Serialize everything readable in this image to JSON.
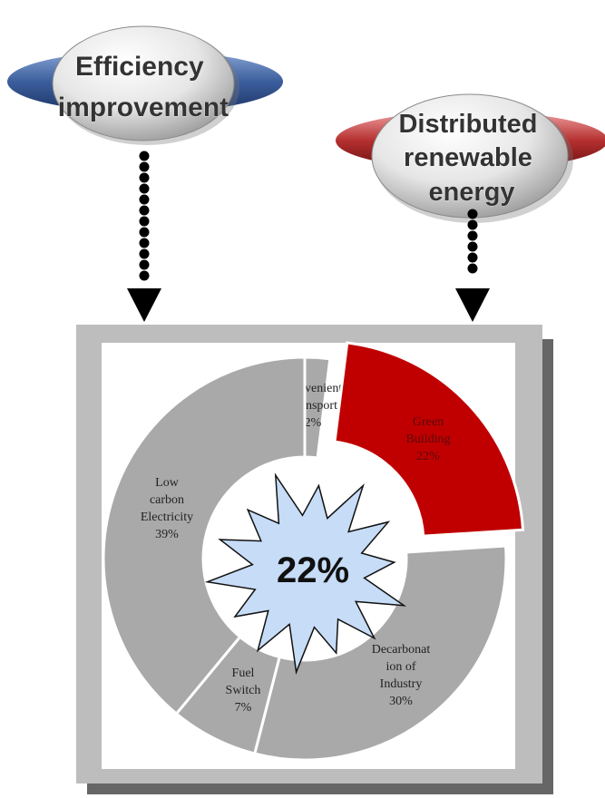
{
  "bubbles": {
    "left": {
      "lines": [
        "Efficiency",
        "improvement"
      ],
      "ring_color": "#3b5e9c"
    },
    "right": {
      "lines": [
        "Distributed",
        "renewable",
        "energy"
      ],
      "ring_color": "#b53030"
    }
  },
  "highlight": {
    "value_text": "22%",
    "fill": "#c6dcf7"
  },
  "chart_data": {
    "type": "pie",
    "style": "donut",
    "title": "",
    "slices": [
      {
        "label_lines": [
          "Convenient",
          "Transport",
          "2%"
        ],
        "value": 2,
        "color": "#a9a9a9"
      },
      {
        "label_lines": [
          "Green",
          "Building",
          "22%"
        ],
        "value": 22,
        "color": "#c00000",
        "exploded": true
      },
      {
        "label_lines": [
          "Decarbonat",
          "ion of",
          "Industry",
          "30%"
        ],
        "value": 30,
        "color": "#a9a9a9"
      },
      {
        "label_lines": [
          "Fuel",
          "Switch",
          "7%"
        ],
        "value": 7,
        "color": "#a9a9a9"
      },
      {
        "label_lines": [
          "Low",
          "carbon",
          "Electricity",
          "39%"
        ],
        "value": 39,
        "color": "#a9a9a9"
      }
    ]
  }
}
